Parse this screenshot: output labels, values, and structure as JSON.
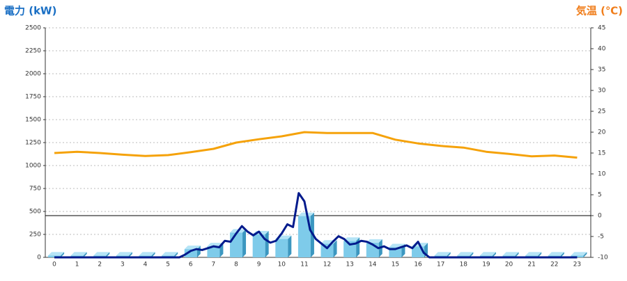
{
  "chart_data": {
    "type": "bar-line",
    "y_title": "電力 (kW)",
    "y2_title": "気温 (℃)",
    "categories": [
      "0",
      "1",
      "2",
      "3",
      "4",
      "5",
      "6",
      "7",
      "8",
      "9",
      "10",
      "11",
      "12",
      "13",
      "14",
      "15",
      "16",
      "17",
      "18",
      "19",
      "20",
      "21",
      "22",
      "23"
    ],
    "ylim": [
      0,
      2500
    ],
    "yticks": [
      0,
      250,
      500,
      750,
      1000,
      1250,
      1500,
      1750,
      2000,
      2250,
      2500
    ],
    "y2lim": [
      -10,
      45
    ],
    "y2ticks": [
      -10,
      -5,
      0,
      5,
      10,
      15,
      20,
      25,
      30,
      35,
      40,
      45
    ],
    "grid": true,
    "series": [
      {
        "type": "bar",
        "color": "#7ecbea",
        "values": [
          20,
          20,
          20,
          20,
          20,
          20,
          90,
          120,
          270,
          250,
          200,
          450,
          150,
          180,
          160,
          110,
          120,
          20,
          20,
          20,
          20,
          20,
          20,
          20
        ]
      },
      {
        "type": "line",
        "color": "#001a8c",
        "x": [
          0,
          1,
          2,
          3,
          4,
          5,
          5.5,
          5.75,
          6,
          6.25,
          6.5,
          6.75,
          7,
          7.25,
          7.5,
          7.75,
          8,
          8.25,
          8.5,
          8.75,
          9,
          9.25,
          9.5,
          9.75,
          10,
          10.25,
          10.5,
          10.75,
          11,
          11.25,
          11.5,
          11.75,
          12,
          12.25,
          12.5,
          12.75,
          13,
          13.25,
          13.5,
          13.75,
          14,
          14.25,
          14.5,
          14.75,
          15,
          15.25,
          15.5,
          15.75,
          16,
          16.25,
          16.5,
          17,
          18,
          19,
          20,
          21,
          22,
          23
        ],
        "values": [
          0,
          0,
          0,
          0,
          0,
          0,
          0,
          30,
          70,
          90,
          80,
          100,
          120,
          110,
          180,
          170,
          260,
          340,
          280,
          240,
          280,
          200,
          160,
          180,
          260,
          360,
          330,
          700,
          610,
          300,
          200,
          150,
          100,
          170,
          230,
          200,
          140,
          150,
          180,
          170,
          140,
          100,
          120,
          90,
          90,
          110,
          130,
          100,
          170,
          50,
          0,
          0,
          0,
          0,
          0,
          0,
          0,
          0
        ]
      },
      {
        "type": "line",
        "axis": "y2",
        "color": "#f5a20a",
        "values": [
          15,
          15.3,
          15,
          14.6,
          14.3,
          14.5,
          15.2,
          16,
          17.5,
          18.3,
          19,
          20,
          19.8,
          19.8,
          19.8,
          18.2,
          17.3,
          16.7,
          16.3,
          15.3,
          14.8,
          14.2,
          14.4,
          13.9
        ]
      }
    ],
    "reference_line": 0
  }
}
